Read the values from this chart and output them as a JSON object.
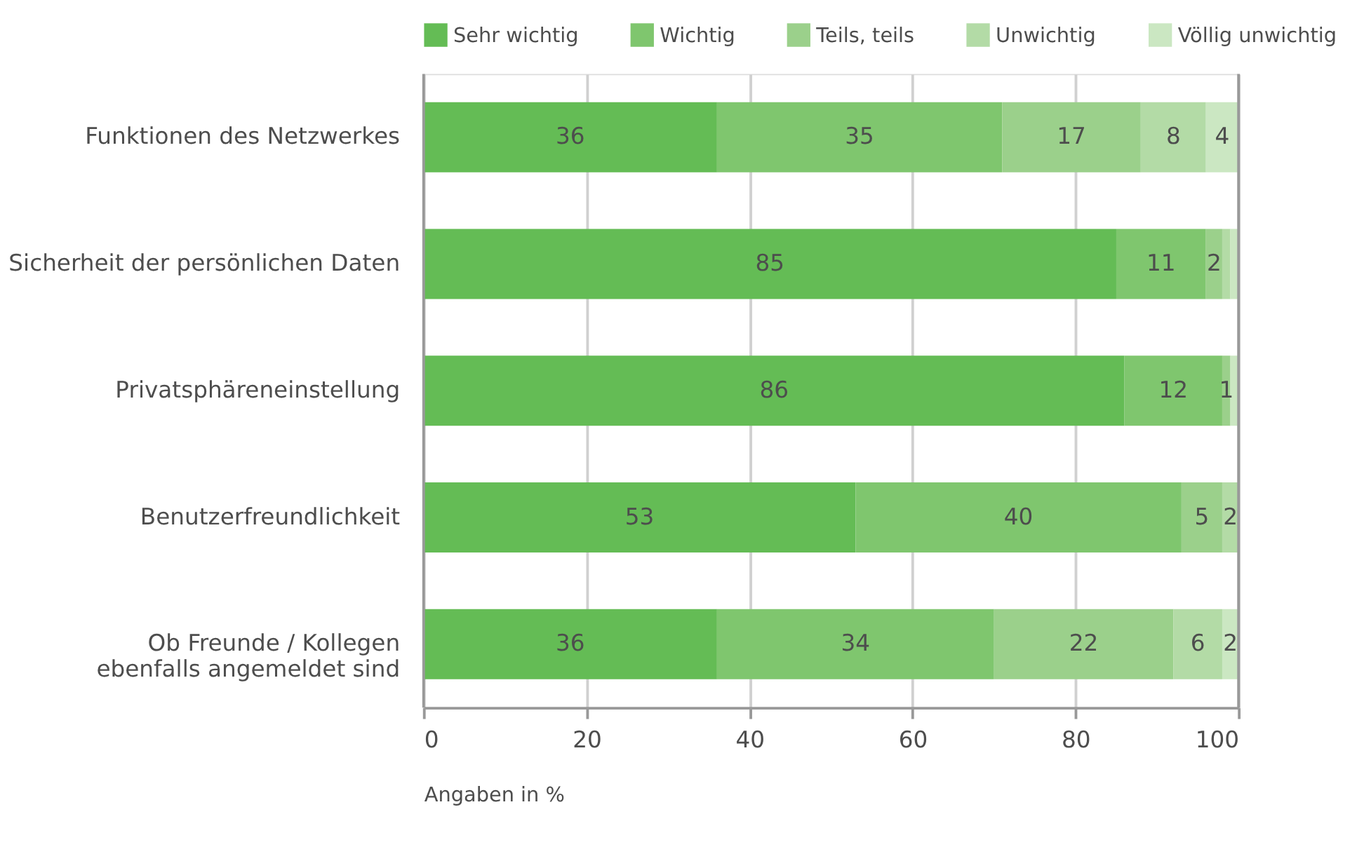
{
  "chart_data": {
    "type": "bar",
    "orientation": "horizontal",
    "stacked": true,
    "categories": [
      "Funktionen des Netzwerkes",
      "Sicherheit der persönlichen Daten",
      "Privatsphäreneinstellung",
      "Benutzerfreundlichkeit",
      "Ob Freunde / Kollegen\nebenfalls angemeldet sind"
    ],
    "series": [
      {
        "name": "Sehr wichtig",
        "color": "#64bc55",
        "values": [
          36,
          85,
          86,
          53,
          36
        ],
        "value_labels": [
          "36",
          "85",
          "86",
          "53",
          "36"
        ]
      },
      {
        "name": "Wichtig",
        "color": "#7fc66e",
        "values": [
          35,
          11,
          12,
          40,
          34
        ],
        "value_labels": [
          "35",
          "11",
          "12",
          "40",
          "34"
        ]
      },
      {
        "name": "Teils, teils",
        "color": "#9bd08b",
        "values": [
          17,
          2,
          1,
          5,
          22
        ],
        "value_labels": [
          "17",
          "2",
          "1",
          "5",
          "22"
        ]
      },
      {
        "name": "Unwichtig",
        "color": "#b3dba6",
        "values": [
          8,
          1,
          0,
          2,
          6
        ],
        "value_labels": [
          "8",
          null,
          null,
          "2",
          "6"
        ]
      },
      {
        "name": "Völlig unwichtig",
        "color": "#cbe7c2",
        "values": [
          4,
          1,
          1,
          0,
          2
        ],
        "value_labels": [
          "4",
          null,
          null,
          null,
          "2"
        ]
      }
    ],
    "xlim": [
      0,
      100
    ],
    "xticks": [
      0,
      20,
      40,
      60,
      80,
      100
    ],
    "xlabel": "Angaben in %",
    "grid": "x",
    "legend": "top"
  }
}
